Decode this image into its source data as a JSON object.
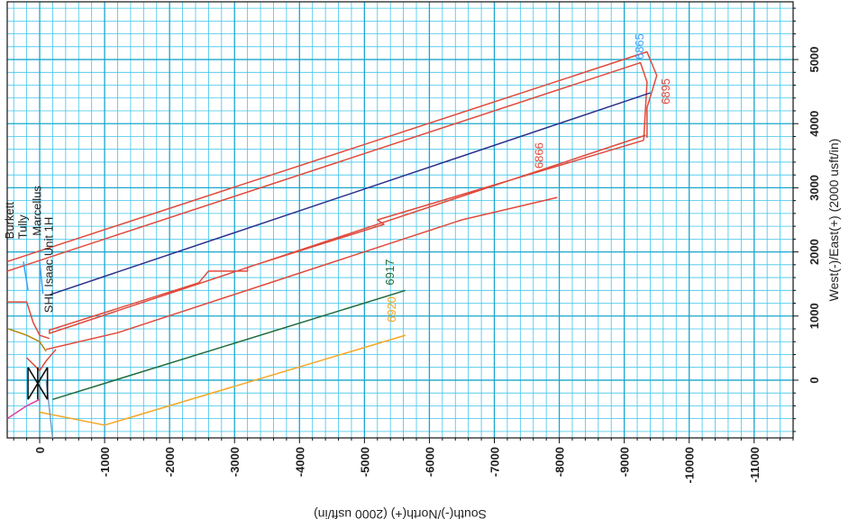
{
  "chart_data": {
    "type": "line",
    "title": "",
    "xlabel": "South(-)/North(+) (2000 usft/in)",
    "ylabel": "West(-)/East(+) (2000 usft/in)",
    "xlim": [
      500,
      -11600
    ],
    "ylim": [
      -900,
      5900
    ],
    "x_ticks": [
      0,
      -1000,
      -2000,
      -3000,
      -4000,
      -5000,
      -6000,
      -7000,
      -8000,
      -9000,
      -10000,
      -11000
    ],
    "y_ticks": [
      0,
      1000,
      2000,
      3000,
      4000,
      5000
    ],
    "x_tick_labels": [
      "0",
      "-1000",
      "-2000",
      "-3000",
      "-4000",
      "-5000",
      "-6000",
      "-7000",
      "-8000",
      "-9000",
      "-10000",
      "-11000"
    ],
    "y_tick_labels": [
      "0",
      "1000",
      "2000",
      "3000",
      "4000",
      "5000"
    ],
    "grid": true,
    "series": [
      {
        "color": "#e04a3c",
        "points": [
          [
            500,
            1850
          ],
          [
            -9350,
            5120
          ],
          [
            -9500,
            4750
          ],
          [
            -9350,
            4250
          ],
          [
            -9350,
            3780
          ]
        ]
      },
      {
        "color": "#e04a3c",
        "points": [
          [
            500,
            1700
          ],
          [
            -9250,
            4950
          ],
          [
            -9350,
            4650
          ],
          [
            -9300,
            3740
          ]
        ]
      },
      {
        "color": "#e04a3c",
        "points": [
          [
            -9300,
            3740
          ],
          [
            -5200,
            2500
          ],
          [
            -5300,
            2430
          ],
          [
            -3200,
            1760
          ],
          [
            -3200,
            1700
          ],
          [
            -2600,
            1700
          ],
          [
            -2450,
            1520
          ],
          [
            -150,
            780
          ],
          [
            -150,
            730
          ],
          [
            -9330,
            3820
          ]
        ]
      },
      {
        "color": "#e04a3c",
        "points": [
          [
            -100,
            480
          ],
          [
            -1200,
            740
          ],
          [
            -6500,
            2500
          ],
          [
            -7970,
            2850
          ]
        ]
      },
      {
        "color": "#2b2f8a",
        "points": [
          [
            -150,
            1330
          ],
          [
            -9400,
            4480
          ]
        ]
      },
      {
        "color": "#1f6b3a",
        "points": [
          [
            -200,
            -300
          ],
          [
            -5630,
            1400
          ]
        ]
      },
      {
        "color": "#f5a623",
        "points": [
          [
            0,
            -500
          ],
          [
            -1000,
            -700
          ],
          [
            -5630,
            700
          ]
        ]
      },
      {
        "color": "#e04a3c",
        "points": [
          [
            500,
            1220
          ],
          [
            200,
            1220
          ],
          [
            100,
            900
          ],
          [
            0,
            700
          ],
          [
            -150,
            650
          ]
        ]
      },
      {
        "color": "#e04a3c",
        "points": [
          [
            200,
            350
          ],
          [
            0,
            150
          ],
          [
            -100,
            300
          ],
          [
            -250,
            480
          ]
        ]
      },
      {
        "color": "#b8860b",
        "points": [
          [
            480,
            800
          ],
          [
            200,
            700
          ],
          [
            0,
            600
          ],
          [
            -100,
            450
          ]
        ]
      },
      {
        "color": "#e040a0",
        "points": [
          [
            500,
            -600
          ],
          [
            200,
            -400
          ],
          [
            0,
            -300
          ]
        ]
      },
      {
        "color": "#7a9fc4",
        "points": [
          [
            -100,
            0
          ],
          [
            -200,
            -900
          ]
        ]
      },
      {
        "color": "#3aa0ff",
        "points": [
          [
            250,
            1850
          ],
          [
            180,
            1400
          ]
        ]
      },
      {
        "color": "#3aa0ff",
        "points": [
          [
            0,
            1850
          ],
          [
            -50,
            1350
          ]
        ]
      }
    ],
    "annotations": [
      {
        "text": "Burkett",
        "x": 400,
        "y": 2200,
        "color": "#222"
      },
      {
        "text": "Tully",
        "x": 200,
        "y": 2200,
        "color": "#222"
      },
      {
        "text": "Marcellus",
        "x": -20,
        "y": 2250,
        "color": "#222"
      },
      {
        "text": "SHL Isaac Unit 1H",
        "x": -200,
        "y": 1050,
        "color": "#222"
      },
      {
        "text": "6917",
        "x": -5450,
        "y": 1480,
        "color": "#1f6b3a"
      },
      {
        "text": "6920",
        "x": -5480,
        "y": 900,
        "color": "#f5a623"
      },
      {
        "text": "6866",
        "x": -7750,
        "y": 3300,
        "color": "#e04a3c"
      },
      {
        "text": "6865",
        "x": -9300,
        "y": 5000,
        "color": "#3aa0ff"
      },
      {
        "text": "6895",
        "x": -9700,
        "y": 4300,
        "color": "#e04a3c"
      }
    ]
  }
}
